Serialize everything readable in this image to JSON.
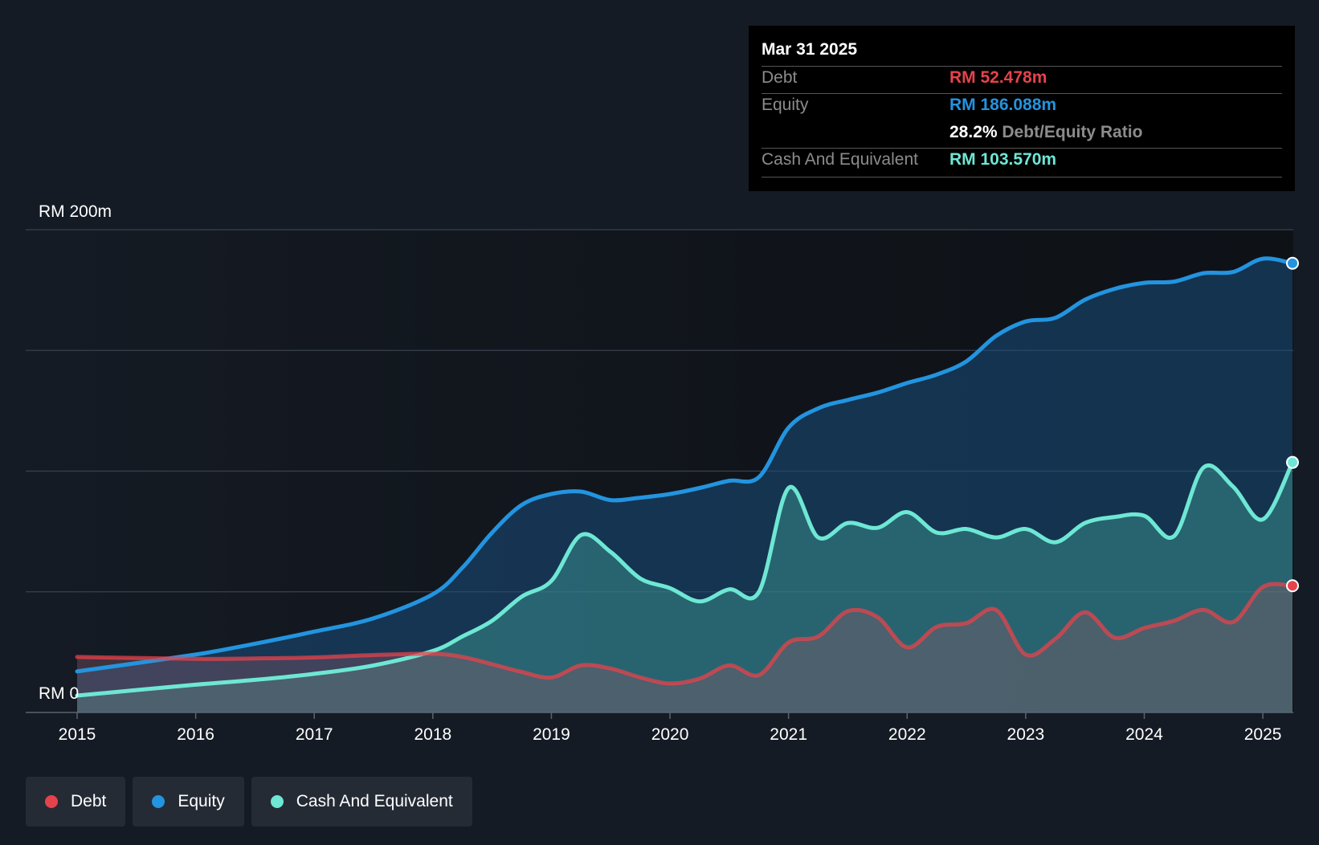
{
  "tooltip": {
    "date": "Mar 31 2025",
    "debt_label": "Debt",
    "debt_value": "RM 52.478m",
    "equity_label": "Equity",
    "equity_value": "RM 186.088m",
    "ratio_value": "28.2%",
    "ratio_label": "Debt/Equity Ratio",
    "cash_label": "Cash And Equivalent",
    "cash_value": "RM 103.570m"
  },
  "legend": {
    "debt": "Debt",
    "equity": "Equity",
    "cash": "Cash And Equivalent"
  },
  "colors": {
    "debt": "#e5434b",
    "equity": "#2394df",
    "cash": "#6ee7d4",
    "background": "#151b24"
  },
  "chart_data": {
    "type": "area",
    "title": "",
    "xlabel": "",
    "ylabel": "",
    "y_unit": "RM",
    "ylim": [
      0,
      200
    ],
    "yticks": [
      0,
      50,
      100,
      150,
      200
    ],
    "ytick_labels": {
      "0": "RM 0",
      "200": "RM 200m"
    },
    "xlim": [
      2015,
      2025.25
    ],
    "xticks": [
      2015,
      2016,
      2017,
      2018,
      2019,
      2020,
      2021,
      2022,
      2023,
      2024,
      2025
    ],
    "xtick_labels": [
      "2015",
      "2016",
      "2017",
      "2018",
      "2019",
      "2020",
      "2021",
      "2022",
      "2023",
      "2024",
      "2025"
    ],
    "series": [
      {
        "name": "Debt",
        "key": "debt",
        "points": [
          [
            2015,
            23.0
          ],
          [
            2016,
            22.2
          ],
          [
            2016.5,
            22.4
          ],
          [
            2017,
            22.8
          ],
          [
            2017.5,
            23.8
          ],
          [
            2018,
            24.3
          ],
          [
            2018.25,
            23.0
          ],
          [
            2018.5,
            20.0
          ],
          [
            2018.75,
            16.8
          ],
          [
            2019,
            14.5
          ],
          [
            2019.25,
            19.5
          ],
          [
            2019.5,
            18.2
          ],
          [
            2019.75,
            14.5
          ],
          [
            2020,
            12.0
          ],
          [
            2020.25,
            14.0
          ],
          [
            2020.5,
            19.5
          ],
          [
            2020.75,
            15.5
          ],
          [
            2021,
            29.0
          ],
          [
            2021.25,
            31.5
          ],
          [
            2021.5,
            42.0
          ],
          [
            2021.75,
            39.5
          ],
          [
            2022,
            27.0
          ],
          [
            2022.25,
            35.5
          ],
          [
            2022.5,
            37.0
          ],
          [
            2022.75,
            42.5
          ],
          [
            2023,
            24.0
          ],
          [
            2023.25,
            30.5
          ],
          [
            2023.5,
            41.5
          ],
          [
            2023.75,
            31.0
          ],
          [
            2024,
            35.0
          ],
          [
            2024.25,
            38.0
          ],
          [
            2024.5,
            42.5
          ],
          [
            2024.75,
            37.5
          ],
          [
            2025,
            52.0
          ],
          [
            2025.25,
            52.5
          ]
        ]
      },
      {
        "name": "Equity",
        "key": "equity",
        "points": [
          [
            2015,
            17.0
          ],
          [
            2016,
            24.0
          ],
          [
            2016.5,
            28.5
          ],
          [
            2017,
            33.5
          ],
          [
            2017.5,
            39.0
          ],
          [
            2018,
            49.0
          ],
          [
            2018.25,
            60.0
          ],
          [
            2018.5,
            74.5
          ],
          [
            2018.75,
            86.0
          ],
          [
            2019,
            90.5
          ],
          [
            2019.25,
            91.5
          ],
          [
            2019.5,
            88.0
          ],
          [
            2019.75,
            89.0
          ],
          [
            2020,
            90.5
          ],
          [
            2020.25,
            93.0
          ],
          [
            2020.5,
            96.0
          ],
          [
            2020.75,
            97.5
          ],
          [
            2021,
            118.0
          ],
          [
            2021.25,
            126.0
          ],
          [
            2021.5,
            129.5
          ],
          [
            2021.75,
            132.5
          ],
          [
            2022,
            136.5
          ],
          [
            2022.25,
            140.0
          ],
          [
            2022.5,
            145.5
          ],
          [
            2022.75,
            156.0
          ],
          [
            2023,
            162.0
          ],
          [
            2023.25,
            163.5
          ],
          [
            2023.5,
            171.0
          ],
          [
            2023.75,
            175.5
          ],
          [
            2024,
            178.0
          ],
          [
            2024.25,
            178.5
          ],
          [
            2024.5,
            182.0
          ],
          [
            2024.75,
            182.5
          ],
          [
            2025,
            188.0
          ],
          [
            2025.25,
            186.1
          ]
        ]
      },
      {
        "name": "Cash And Equivalent",
        "key": "cash",
        "points": [
          [
            2015,
            7.0
          ],
          [
            2016,
            11.5
          ],
          [
            2016.5,
            13.5
          ],
          [
            2017,
            16.0
          ],
          [
            2017.5,
            19.5
          ],
          [
            2018,
            25.5
          ],
          [
            2018.25,
            31.5
          ],
          [
            2018.5,
            38.0
          ],
          [
            2018.75,
            48.0
          ],
          [
            2019,
            54.5
          ],
          [
            2019.25,
            73.5
          ],
          [
            2019.5,
            66.5
          ],
          [
            2019.75,
            55.5
          ],
          [
            2020,
            51.5
          ],
          [
            2020.25,
            46.0
          ],
          [
            2020.5,
            51.0
          ],
          [
            2020.75,
            50.0
          ],
          [
            2021,
            93.0
          ],
          [
            2021.25,
            72.5
          ],
          [
            2021.5,
            78.5
          ],
          [
            2021.75,
            76.5
          ],
          [
            2022,
            83.0
          ],
          [
            2022.25,
            74.5
          ],
          [
            2022.5,
            76.0
          ],
          [
            2022.75,
            72.5
          ],
          [
            2023,
            76.0
          ],
          [
            2023.25,
            70.5
          ],
          [
            2023.5,
            78.5
          ],
          [
            2023.75,
            81.0
          ],
          [
            2024,
            81.5
          ],
          [
            2024.25,
            73.0
          ],
          [
            2024.5,
            101.5
          ],
          [
            2024.75,
            93.5
          ],
          [
            2025,
            80.0
          ],
          [
            2025.25,
            103.6
          ]
        ]
      }
    ]
  }
}
